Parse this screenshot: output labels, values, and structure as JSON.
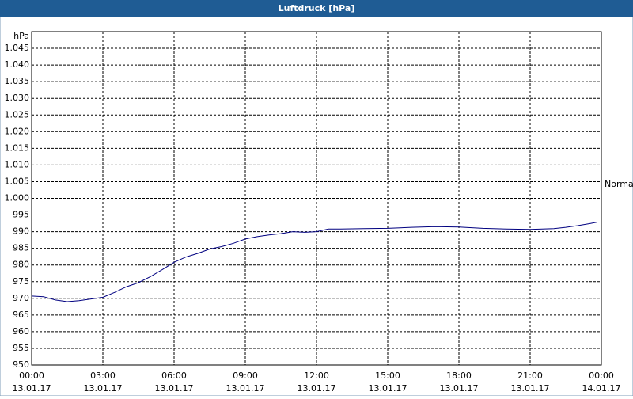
{
  "chart_data": {
    "type": "line",
    "title": "Luftdruck [hPa]",
    "ylabel": "hPa",
    "annotation": "Normal",
    "xlim": [
      0,
      24
    ],
    "ylim": [
      950,
      1050
    ],
    "xticks": [
      {
        "value": 0,
        "label": "00:00",
        "date": "13.01.17"
      },
      {
        "value": 3,
        "label": "03:00",
        "date": "13.01.17"
      },
      {
        "value": 6,
        "label": "06:00",
        "date": "13.01.17"
      },
      {
        "value": 9,
        "label": "09:00",
        "date": "13.01.17"
      },
      {
        "value": 12,
        "label": "12:00",
        "date": "13.01.17"
      },
      {
        "value": 15,
        "label": "15:00",
        "date": "13.01.17"
      },
      {
        "value": 18,
        "label": "18:00",
        "date": "13.01.17"
      },
      {
        "value": 21,
        "label": "21:00",
        "date": "13.01.17"
      },
      {
        "value": 24,
        "label": "00:00",
        "date": "14.01.17"
      }
    ],
    "yticks": [
      950,
      955,
      960,
      965,
      970,
      975,
      980,
      985,
      990,
      995,
      {
        "value": 1000,
        "label": "1.000"
      },
      {
        "value": 1005,
        "label": "1.005"
      },
      {
        "value": 1010,
        "label": "1.010"
      },
      {
        "value": 1015,
        "label": "1.015"
      },
      {
        "value": 1020,
        "label": "1.020"
      },
      {
        "value": 1025,
        "label": "1.025"
      },
      {
        "value": 1030,
        "label": "1.030"
      },
      {
        "value": 1035,
        "label": "1.035"
      },
      {
        "value": 1040,
        "label": "1.040"
      },
      {
        "value": 1045,
        "label": "1.045"
      }
    ],
    "grid": true,
    "x": [
      0,
      0.5,
      1,
      1.5,
      2,
      2.5,
      3,
      3.5,
      4,
      4.5,
      5,
      5.5,
      6,
      6.5,
      7,
      7.5,
      8,
      8.5,
      9,
      9.5,
      10,
      10.5,
      11,
      11.5,
      12,
      12.5,
      13,
      14,
      15,
      16,
      17,
      18,
      19,
      20,
      21,
      22,
      22.5,
      23,
      23.5,
      23.8
    ],
    "series": [
      {
        "color": "#000080",
        "values": [
          970.7,
          970.5,
          969.5,
          969.0,
          969.3,
          969.8,
          970.3,
          971.8,
          973.5,
          974.7,
          976.5,
          978.6,
          980.8,
          982.4,
          983.5,
          984.8,
          985.5,
          986.5,
          987.8,
          988.5,
          989.0,
          989.4,
          990.0,
          989.8,
          990.0,
          990.8,
          990.8,
          990.9,
          991.0,
          991.3,
          991.5,
          991.4,
          991.0,
          990.8,
          990.7,
          990.9,
          991.3,
          991.8,
          992.4,
          992.8
        ]
      }
    ]
  }
}
